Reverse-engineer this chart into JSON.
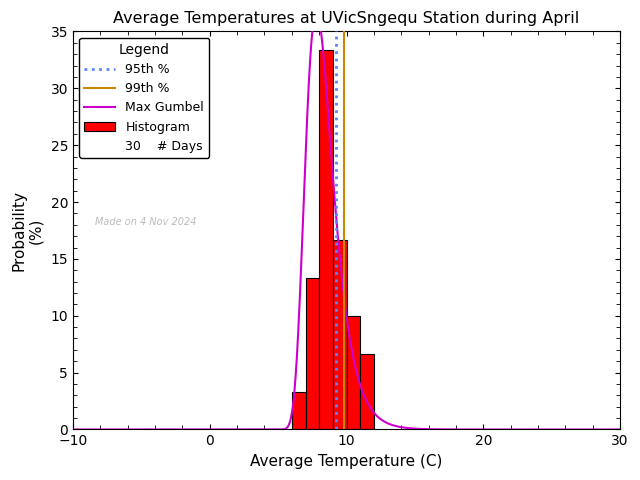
{
  "title": "Average Temperatures at UVicSngequ Station during April",
  "xlabel": "Average Temperature (C)",
  "ylabel_line1": "Probability",
  "ylabel_line2": "(%)",
  "xlim": [
    -10,
    30
  ],
  "ylim": [
    0,
    35
  ],
  "xticks": [
    -10,
    0,
    10,
    20,
    30
  ],
  "yticks": [
    0,
    5,
    10,
    15,
    20,
    25,
    30,
    35
  ],
  "bar_edges": [
    6,
    7,
    8,
    9,
    10,
    11,
    12
  ],
  "bar_heights": [
    3.33,
    13.33,
    33.33,
    16.67,
    10.0,
    6.67,
    0.0
  ],
  "bar_color": "#ff0000",
  "bar_edgecolor": "#000000",
  "gumbel_color": "#cc00cc",
  "gumbel_mu": 7.8,
  "gumbel_beta": 1.0,
  "perc95_x": 9.2,
  "perc99_x": 9.8,
  "perc95_color": "#5588ff",
  "perc99_color": "#cc8800",
  "legend_title": "Legend",
  "legend_items": [
    "95th %",
    "99th %",
    "Max Gumbel",
    "Histogram",
    "30    # Days"
  ],
  "watermark": "Made on 4 Nov 2024",
  "watermark_color": "#bbbbbb",
  "background_color": "#ffffff",
  "figwidth": 6.4,
  "figheight": 4.8,
  "dpi": 100
}
